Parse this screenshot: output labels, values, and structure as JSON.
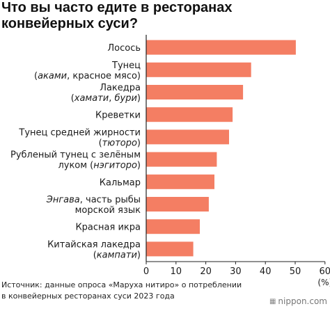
{
  "title_lines": [
    "Что вы часто едите в ресторанах",
    "конвейерных суси?"
  ],
  "source_lines": [
    "Источник: данные опроса «Маруха нитиро» о потреблении",
    "в конвейерных ресторанах суси 2023 года"
  ],
  "brand": {
    "mark_icon": "grid-logo-icon",
    "text": "nippon.com"
  },
  "colors": {
    "bar": "#f47e63",
    "axis": "#222222",
    "grid": "#cccccc"
  },
  "chart_data": {
    "type": "bar",
    "orientation": "horizontal",
    "categories": [
      {
        "lines": [
          [
            {
              "t": "Лосось",
              "i": false
            }
          ]
        ]
      },
      {
        "lines": [
          [
            {
              "t": "Тунец",
              "i": false
            }
          ],
          [
            {
              "t": "(",
              "i": false
            },
            {
              "t": "аками",
              "i": true
            },
            {
              "t": ", красное мясо)",
              "i": false
            }
          ]
        ]
      },
      {
        "lines": [
          [
            {
              "t": "Лакедра",
              "i": false
            }
          ],
          [
            {
              "t": "(",
              "i": false
            },
            {
              "t": "хамати",
              "i": true
            },
            {
              "t": ", ",
              "i": false
            },
            {
              "t": "бури",
              "i": true
            },
            {
              "t": ")",
              "i": false
            }
          ]
        ]
      },
      {
        "lines": [
          [
            {
              "t": "Креветки",
              "i": false
            }
          ]
        ]
      },
      {
        "lines": [
          [
            {
              "t": "Тунец средней жирности",
              "i": false
            }
          ],
          [
            {
              "t": "(",
              "i": false
            },
            {
              "t": "тюторо",
              "i": true
            },
            {
              "t": ")",
              "i": false
            }
          ]
        ]
      },
      {
        "lines": [
          [
            {
              "t": "Рубленый тунец с зелёным",
              "i": false
            }
          ],
          [
            {
              "t": "луком (",
              "i": false
            },
            {
              "t": "нэгиторо",
              "i": true
            },
            {
              "t": ")",
              "i": false
            }
          ]
        ]
      },
      {
        "lines": [
          [
            {
              "t": "Кальмар",
              "i": false
            }
          ]
        ]
      },
      {
        "lines": [
          [
            {
              "t": "Энгава",
              "i": true
            },
            {
              "t": ", часть рыбы",
              "i": false
            }
          ],
          [
            {
              "t": "морской язык",
              "i": false
            }
          ]
        ]
      },
      {
        "lines": [
          [
            {
              "t": "Красная икра",
              "i": false
            }
          ]
        ]
      },
      {
        "lines": [
          [
            {
              "t": "Китайская лакедра",
              "i": false
            }
          ],
          [
            {
              "t": "(",
              "i": false
            },
            {
              "t": "кампати",
              "i": true
            },
            {
              "t": ")",
              "i": false
            }
          ]
        ]
      }
    ],
    "values": [
      50.2,
      35.2,
      32.5,
      29.0,
      27.8,
      23.7,
      22.9,
      21.0,
      18.0,
      15.8
    ],
    "xticks": [
      "0",
      "10",
      "20",
      "30",
      "40",
      "50",
      "60"
    ],
    "xlim": [
      0,
      60
    ],
    "xunit": "(%)",
    "grid": false
  }
}
